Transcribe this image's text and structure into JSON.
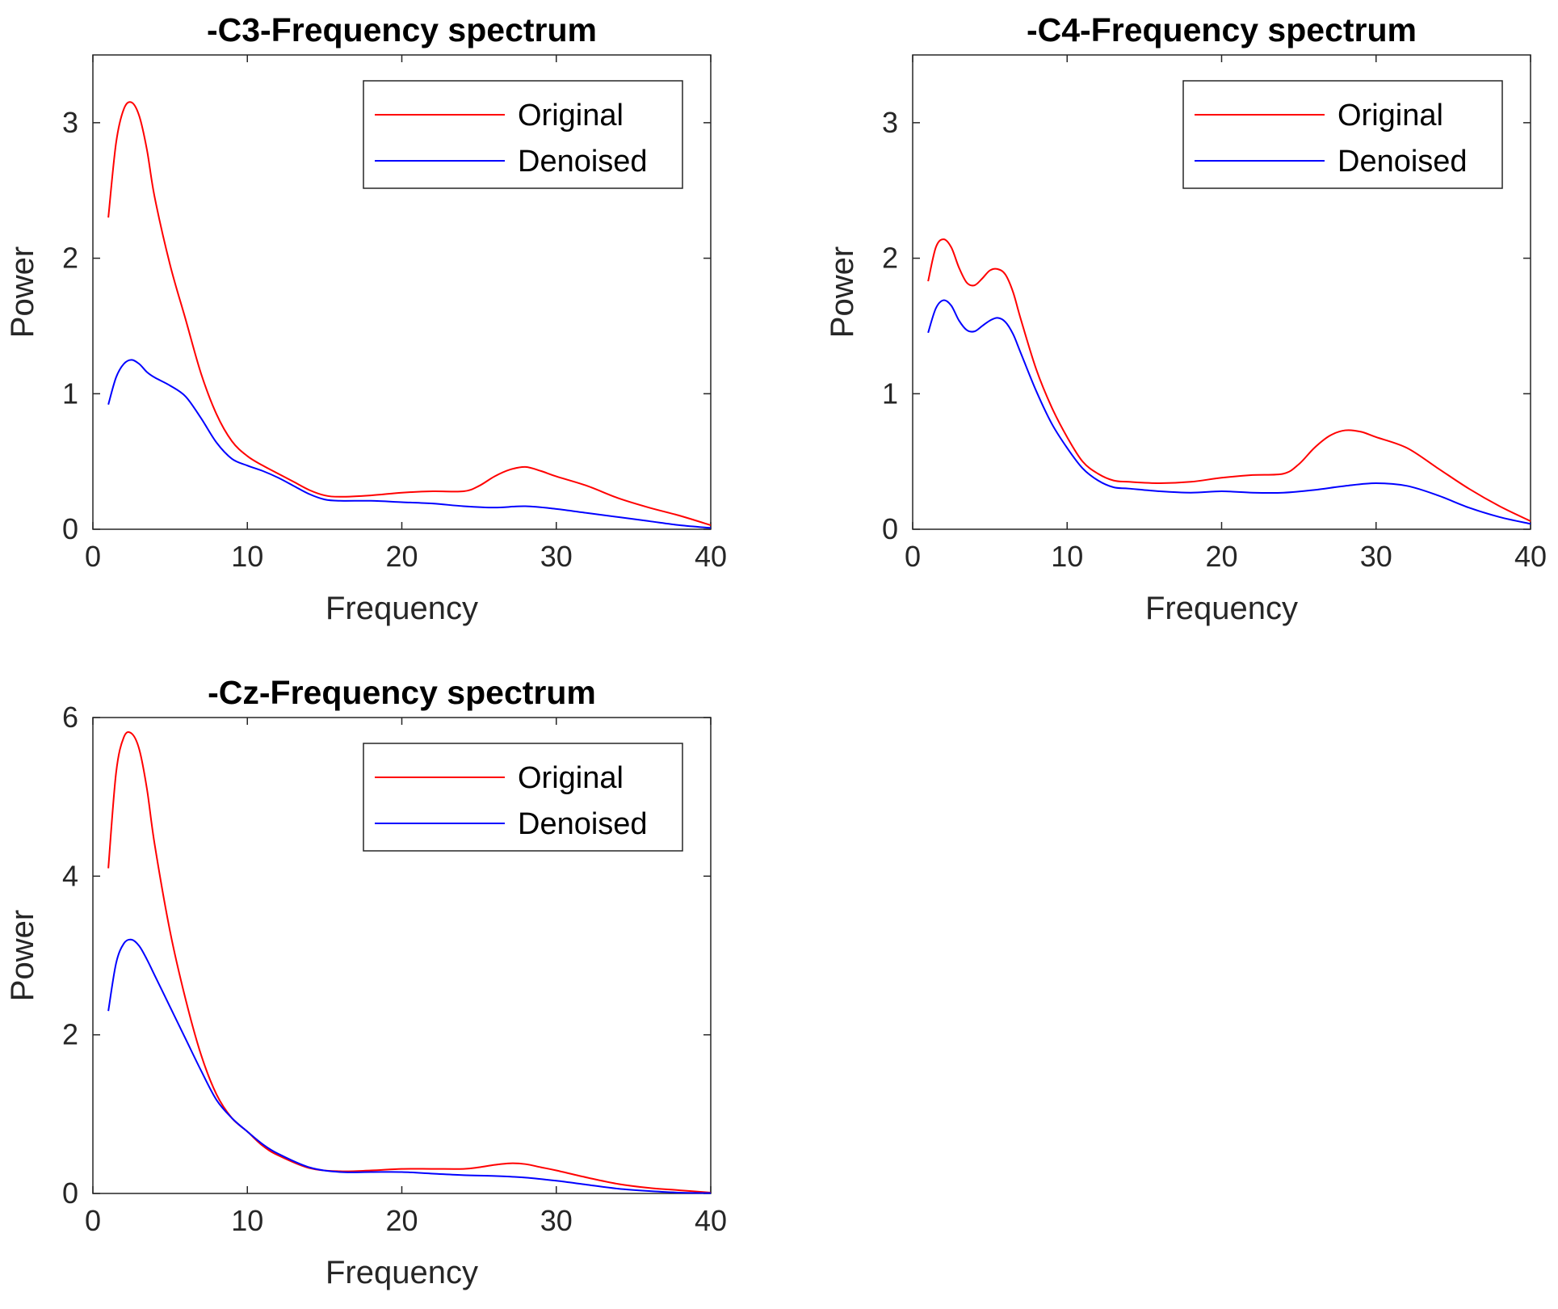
{
  "chart_data": [
    {
      "type": "line",
      "title": "-C3-Frequency spectrum",
      "xlabel": "Frequency",
      "ylabel": "Power",
      "xlim": [
        0,
        40
      ],
      "ylim": [
        0,
        3.5
      ],
      "xticks": [
        0,
        10,
        20,
        30,
        40
      ],
      "yticks": [
        0,
        1,
        2,
        3
      ],
      "legend_position": "top-right",
      "series": [
        {
          "name": "Original",
          "color": "#ff0000",
          "x": [
            1,
            1.5,
            2,
            2.5,
            3,
            3.5,
            4,
            5,
            6,
            7,
            8,
            9,
            10,
            11,
            12,
            13,
            14,
            15,
            16,
            18,
            20,
            22,
            24,
            25,
            26,
            27,
            28,
            29,
            30,
            32,
            34,
            36,
            38,
            40
          ],
          "y": [
            2.3,
            2.85,
            3.1,
            3.15,
            3.05,
            2.8,
            2.45,
            1.95,
            1.55,
            1.15,
            0.85,
            0.65,
            0.54,
            0.47,
            0.41,
            0.35,
            0.29,
            0.25,
            0.24,
            0.25,
            0.27,
            0.28,
            0.28,
            0.32,
            0.39,
            0.44,
            0.46,
            0.43,
            0.39,
            0.32,
            0.23,
            0.16,
            0.1,
            0.03
          ]
        },
        {
          "name": "Denoised",
          "color": "#0000ff",
          "x": [
            1,
            1.5,
            2,
            2.5,
            3,
            3.5,
            4,
            5,
            6,
            7,
            8,
            9,
            10,
            11,
            12,
            13,
            14,
            15,
            16,
            18,
            20,
            22,
            24,
            26,
            28,
            30,
            32,
            34,
            36,
            38,
            40
          ],
          "y": [
            0.92,
            1.12,
            1.22,
            1.25,
            1.22,
            1.16,
            1.12,
            1.06,
            0.98,
            0.82,
            0.64,
            0.52,
            0.47,
            0.43,
            0.38,
            0.32,
            0.26,
            0.22,
            0.21,
            0.21,
            0.2,
            0.19,
            0.17,
            0.16,
            0.17,
            0.15,
            0.12,
            0.09,
            0.06,
            0.03,
            0.01
          ]
        }
      ]
    },
    {
      "type": "line",
      "title": "-C4-Frequency spectrum",
      "xlabel": "Frequency",
      "ylabel": "Power",
      "xlim": [
        0,
        40
      ],
      "ylim": [
        0,
        3.5
      ],
      "xticks": [
        0,
        10,
        20,
        30,
        40
      ],
      "yticks": [
        0,
        1,
        2,
        3
      ],
      "legend_position": "top-right",
      "series": [
        {
          "name": "Original",
          "color": "#ff0000",
          "x": [
            1,
            1.5,
            2,
            2.5,
            3,
            3.5,
            4,
            4.5,
            5,
            5.5,
            6,
            6.5,
            7,
            8,
            9,
            10,
            11,
            12,
            13,
            14,
            16,
            18,
            20,
            22,
            24,
            25,
            26,
            27,
            28,
            29,
            30,
            32,
            34,
            36,
            38,
            40
          ],
          "y": [
            1.83,
            2.08,
            2.14,
            2.08,
            1.93,
            1.82,
            1.8,
            1.85,
            1.91,
            1.92,
            1.88,
            1.75,
            1.55,
            1.18,
            0.9,
            0.68,
            0.5,
            0.41,
            0.36,
            0.35,
            0.34,
            0.35,
            0.38,
            0.4,
            0.41,
            0.48,
            0.6,
            0.69,
            0.73,
            0.72,
            0.68,
            0.6,
            0.45,
            0.3,
            0.17,
            0.06
          ]
        },
        {
          "name": "Denoised",
          "color": "#0000ff",
          "x": [
            1,
            1.5,
            2,
            2.5,
            3,
            3.5,
            4,
            4.5,
            5,
            5.5,
            6,
            6.5,
            7,
            8,
            9,
            10,
            11,
            12,
            13,
            14,
            16,
            18,
            20,
            22,
            24,
            26,
            28,
            30,
            32,
            34,
            36,
            38,
            40
          ],
          "y": [
            1.45,
            1.63,
            1.69,
            1.65,
            1.54,
            1.47,
            1.46,
            1.5,
            1.54,
            1.56,
            1.53,
            1.44,
            1.3,
            1.02,
            0.78,
            0.6,
            0.45,
            0.36,
            0.31,
            0.3,
            0.28,
            0.27,
            0.28,
            0.27,
            0.27,
            0.29,
            0.32,
            0.34,
            0.32,
            0.25,
            0.16,
            0.09,
            0.04
          ]
        }
      ]
    },
    {
      "type": "line",
      "title": "-Cz-Frequency spectrum",
      "xlabel": "Frequency",
      "ylabel": "Power",
      "xlim": [
        0,
        40
      ],
      "ylim": [
        0,
        6
      ],
      "xticks": [
        0,
        10,
        20,
        30,
        40
      ],
      "yticks": [
        0,
        2,
        4,
        6
      ],
      "legend_position": "top-right",
      "series": [
        {
          "name": "Original",
          "color": "#ff0000",
          "x": [
            1,
            1.5,
            2,
            2.5,
            3,
            3.5,
            4,
            5,
            6,
            7,
            8,
            9,
            10,
            11,
            12,
            14,
            16,
            18,
            20,
            22,
            24,
            25,
            26,
            27,
            28,
            29,
            30,
            32,
            34,
            36,
            38,
            40
          ],
          "y": [
            4.1,
            5.3,
            5.75,
            5.8,
            5.6,
            5.1,
            4.4,
            3.3,
            2.45,
            1.75,
            1.25,
            0.95,
            0.78,
            0.6,
            0.48,
            0.32,
            0.28,
            0.29,
            0.31,
            0.31,
            0.31,
            0.33,
            0.36,
            0.38,
            0.37,
            0.33,
            0.29,
            0.2,
            0.12,
            0.07,
            0.04,
            0.01
          ]
        },
        {
          "name": "Denoised",
          "color": "#0000ff",
          "x": [
            1,
            1.5,
            2,
            2.5,
            3,
            3.5,
            4,
            5,
            6,
            7,
            8,
            9,
            10,
            11,
            12,
            14,
            16,
            18,
            20,
            22,
            24,
            26,
            28,
            30,
            32,
            34,
            36,
            38,
            40
          ],
          "y": [
            2.3,
            2.9,
            3.15,
            3.2,
            3.12,
            2.95,
            2.75,
            2.35,
            1.95,
            1.55,
            1.18,
            0.95,
            0.78,
            0.62,
            0.5,
            0.33,
            0.27,
            0.27,
            0.27,
            0.25,
            0.23,
            0.22,
            0.2,
            0.16,
            0.11,
            0.06,
            0.03,
            0.01,
            0.005
          ]
        }
      ]
    }
  ]
}
